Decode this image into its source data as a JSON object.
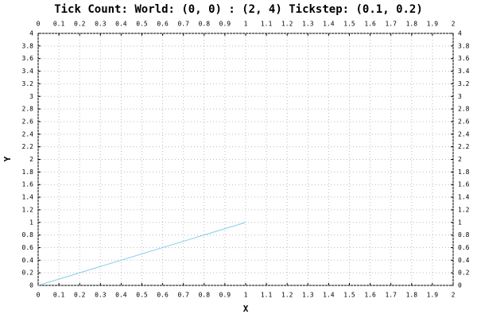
{
  "chart_data": {
    "type": "line",
    "title": "Tick Count: World: (0, 0) : (2, 4) Tickstep: (0.1, 0.2)",
    "xlabel": "X",
    "ylabel": "Y",
    "x": [
      0,
      1
    ],
    "series": [
      {
        "color": "#87ceeb",
        "values": [
          0,
          1
        ]
      }
    ],
    "xlim": [
      0,
      2
    ],
    "ylim": [
      0,
      4
    ],
    "xticks": [
      0,
      0.1,
      0.2,
      0.3,
      0.4,
      0.5,
      0.6,
      0.7,
      0.8,
      0.9,
      1,
      1.1,
      1.2,
      1.3,
      1.4,
      1.5,
      1.6,
      1.7,
      1.8,
      1.9,
      2
    ],
    "yticks": [
      0,
      0.2,
      0.4,
      0.6,
      0.8,
      1,
      1.2,
      1.4,
      1.6,
      1.8,
      2,
      2.2,
      2.4,
      2.6,
      2.8,
      3,
      3.2,
      3.4,
      3.6,
      3.8,
      4
    ],
    "grid": true
  }
}
